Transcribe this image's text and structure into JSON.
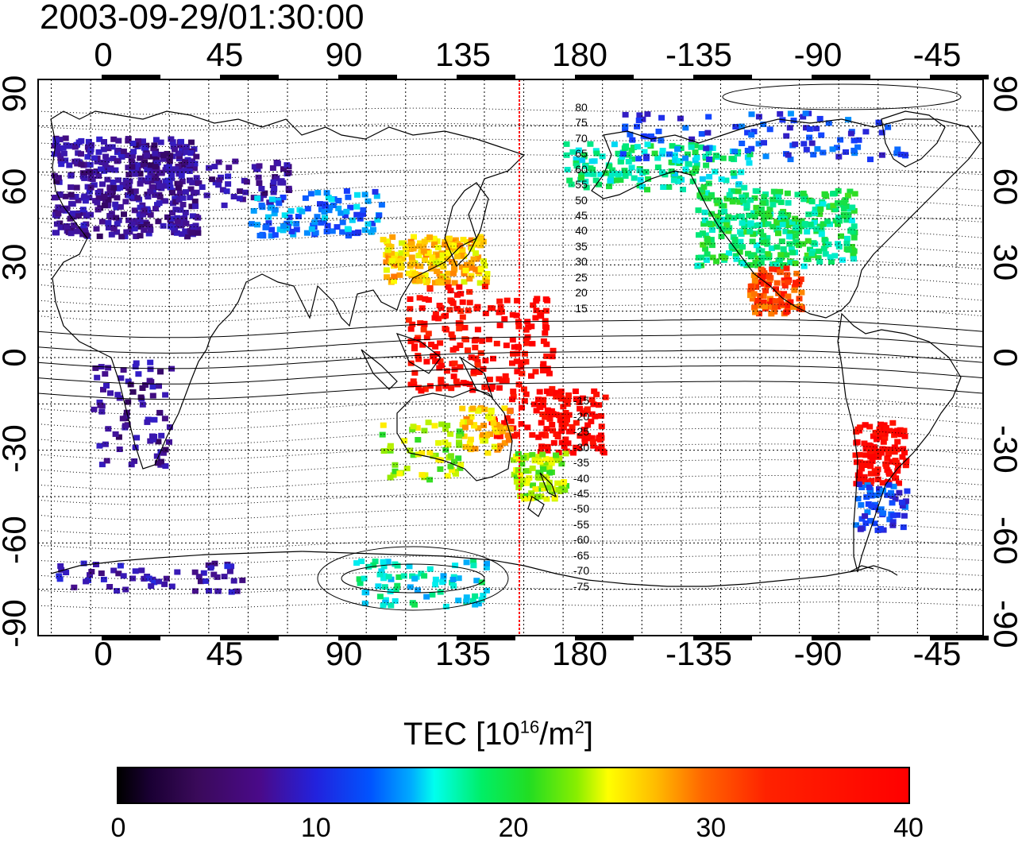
{
  "timestamp": "2003-09-29/01:30:00",
  "axes": {
    "top_ticks": [
      "0",
      "45",
      "90",
      "135",
      "180",
      "-135",
      "-90",
      "-45"
    ],
    "bottom_ticks": [
      "0",
      "45",
      "90",
      "135",
      "180",
      "-135",
      "-90",
      "-45"
    ],
    "left_ticks": [
      "90",
      "60",
      "30",
      "0",
      "-30",
      "-60",
      "-90"
    ],
    "right_ticks": [
      "90",
      "60",
      "30",
      "0",
      "-30",
      "-60",
      "-90"
    ]
  },
  "contour_labels": [
    "80",
    "75",
    "70",
    "65",
    "60",
    "55",
    "50",
    "45",
    "40",
    "35",
    "30",
    "25",
    "20",
    "15",
    "-15",
    "-20",
    "-25",
    "-30",
    "-35",
    "-40",
    "-45",
    "-50",
    "-55",
    "-60",
    "-65",
    "-70",
    "-75"
  ],
  "colorbar": {
    "title_main": "TEC  [10",
    "title_sup1": "16",
    "title_mid": "/m",
    "title_sup2": "2",
    "title_end": "]",
    "ticks": [
      "0",
      "10",
      "20",
      "30",
      "40"
    ],
    "range": [
      0,
      40
    ]
  },
  "terminator_color": "#ff0000"
}
